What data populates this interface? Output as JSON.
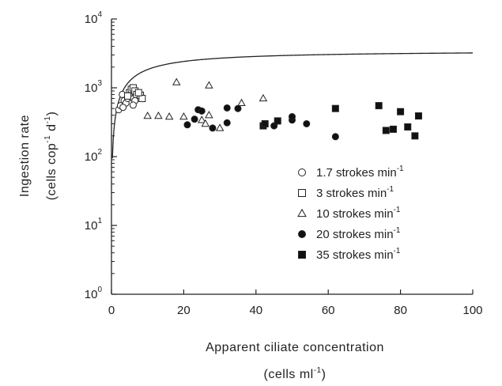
{
  "chart_data": {
    "type": "scatter",
    "xlabel": "Apparent  ciliate  concentration",
    "xlabel_units": "(cells  ml",
    "xlabel_units_exp": "-1",
    "xlabel_units_close": ")",
    "ylabel": "Ingestion rate",
    "ylabel_units_parts": [
      "(cells cop",
      "-1",
      " d",
      "-1",
      ")"
    ],
    "xlim": [
      0,
      100
    ],
    "ylim": [
      1,
      10000
    ],
    "y_scale": "log",
    "x_ticks": [
      0,
      20,
      40,
      60,
      80,
      100
    ],
    "y_ticks": [
      {
        "value": 1,
        "base": "10",
        "exp": "0"
      },
      {
        "value": 10,
        "base": "10",
        "exp": "1"
      },
      {
        "value": 100,
        "base": "10",
        "exp": "2"
      },
      {
        "value": 1000,
        "base": "10",
        "exp": "3"
      },
      {
        "value": 10000,
        "base": "10",
        "exp": "4"
      }
    ],
    "legend_position": "right-middle",
    "series": [
      {
        "name": "1.7 strokes min",
        "name_exp": "-1",
        "marker": "open-circle",
        "points": [
          [
            2,
            480
          ],
          [
            2.5,
            550
          ],
          [
            3,
            800
          ],
          [
            3.5,
            650
          ],
          [
            4,
            600
          ],
          [
            4.5,
            700
          ],
          [
            5,
            750
          ],
          [
            5.5,
            800
          ],
          [
            6,
            700
          ],
          [
            6.5,
            650
          ],
          [
            3.2,
            520
          ],
          [
            6,
            560
          ]
        ]
      },
      {
        "name": "3 strokes min",
        "name_exp": "-1",
        "marker": "open-square",
        "points": [
          [
            5,
            850
          ],
          [
            5.5,
            950
          ],
          [
            6,
            1000
          ],
          [
            6.5,
            900
          ],
          [
            7,
            800
          ],
          [
            8,
            780
          ],
          [
            8.5,
            700
          ],
          [
            4.5,
            760
          ],
          [
            7.5,
            850
          ]
        ]
      },
      {
        "name": "10 strokes min",
        "name_exp": "-1",
        "marker": "open-triangle",
        "points": [
          [
            10,
            390
          ],
          [
            13,
            390
          ],
          [
            16,
            380
          ],
          [
            18,
            1200
          ],
          [
            20,
            380
          ],
          [
            25,
            340
          ],
          [
            26,
            300
          ],
          [
            27,
            1080
          ],
          [
            27,
            400
          ],
          [
            30,
            260
          ],
          [
            36,
            600
          ],
          [
            42,
            700
          ]
        ]
      },
      {
        "name": "20 strokes min",
        "name_exp": "-1",
        "marker": "filled-circle",
        "points": [
          [
            21,
            290
          ],
          [
            23,
            350
          ],
          [
            24,
            480
          ],
          [
            25,
            460
          ],
          [
            28,
            260
          ],
          [
            32,
            310
          ],
          [
            32,
            510
          ],
          [
            35,
            500
          ],
          [
            45,
            280
          ],
          [
            46,
            330
          ],
          [
            50,
            340
          ],
          [
            50,
            380
          ],
          [
            54,
            300
          ],
          [
            62,
            195
          ]
        ]
      },
      {
        "name": "35 strokes min",
        "name_exp": "-1",
        "marker": "filled-square",
        "points": [
          [
            42,
            280
          ],
          [
            42.5,
            300
          ],
          [
            46,
            330
          ],
          [
            62,
            500
          ],
          [
            74,
            550
          ],
          [
            76,
            240
          ],
          [
            78,
            250
          ],
          [
            80,
            450
          ],
          [
            82,
            270
          ],
          [
            84,
            200
          ],
          [
            85,
            390
          ]
        ]
      }
    ],
    "curve": {
      "name": "",
      "function": "saturating",
      "imax": 3500,
      "k": 9
    }
  }
}
